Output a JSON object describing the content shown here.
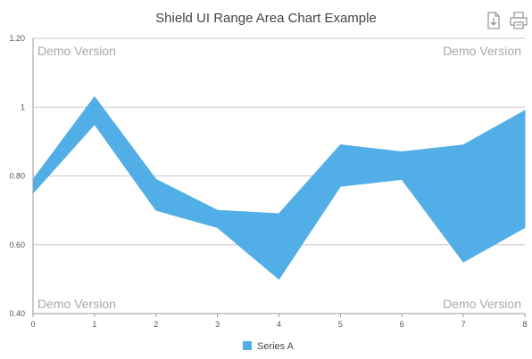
{
  "chart_title": "Shield UI Range Area Chart Example",
  "toolbar": {
    "export_icon": "export-document-icon",
    "print_icon": "print-icon"
  },
  "watermarks": [
    "Demo Version",
    "Demo Version",
    "Demo Version",
    "Demo Version"
  ],
  "chart_data": {
    "type": "area",
    "subtype": "range-area",
    "title": "Shield UI Range Area Chart Example",
    "x": [
      0,
      1,
      2,
      3,
      4,
      5,
      6,
      7,
      8
    ],
    "series": [
      {
        "name": "Series A",
        "color": "#52aee6",
        "low": [
          0.75,
          0.95,
          0.7,
          0.65,
          0.5,
          0.77,
          0.79,
          0.55,
          0.65
        ],
        "high": [
          0.79,
          1.03,
          0.79,
          0.7,
          0.69,
          0.89,
          0.87,
          0.89,
          0.99
        ]
      }
    ],
    "xlim": [
      0,
      8
    ],
    "ylim": [
      0.4,
      1.2
    ],
    "y_ticks": [
      "0.40",
      "0.60",
      "0.80",
      "1",
      "1.20"
    ],
    "x_ticks": [
      "0",
      "1",
      "2",
      "3",
      "4",
      "5",
      "6",
      "7",
      "8"
    ],
    "grid": true,
    "legend_position": "bottom-center"
  }
}
